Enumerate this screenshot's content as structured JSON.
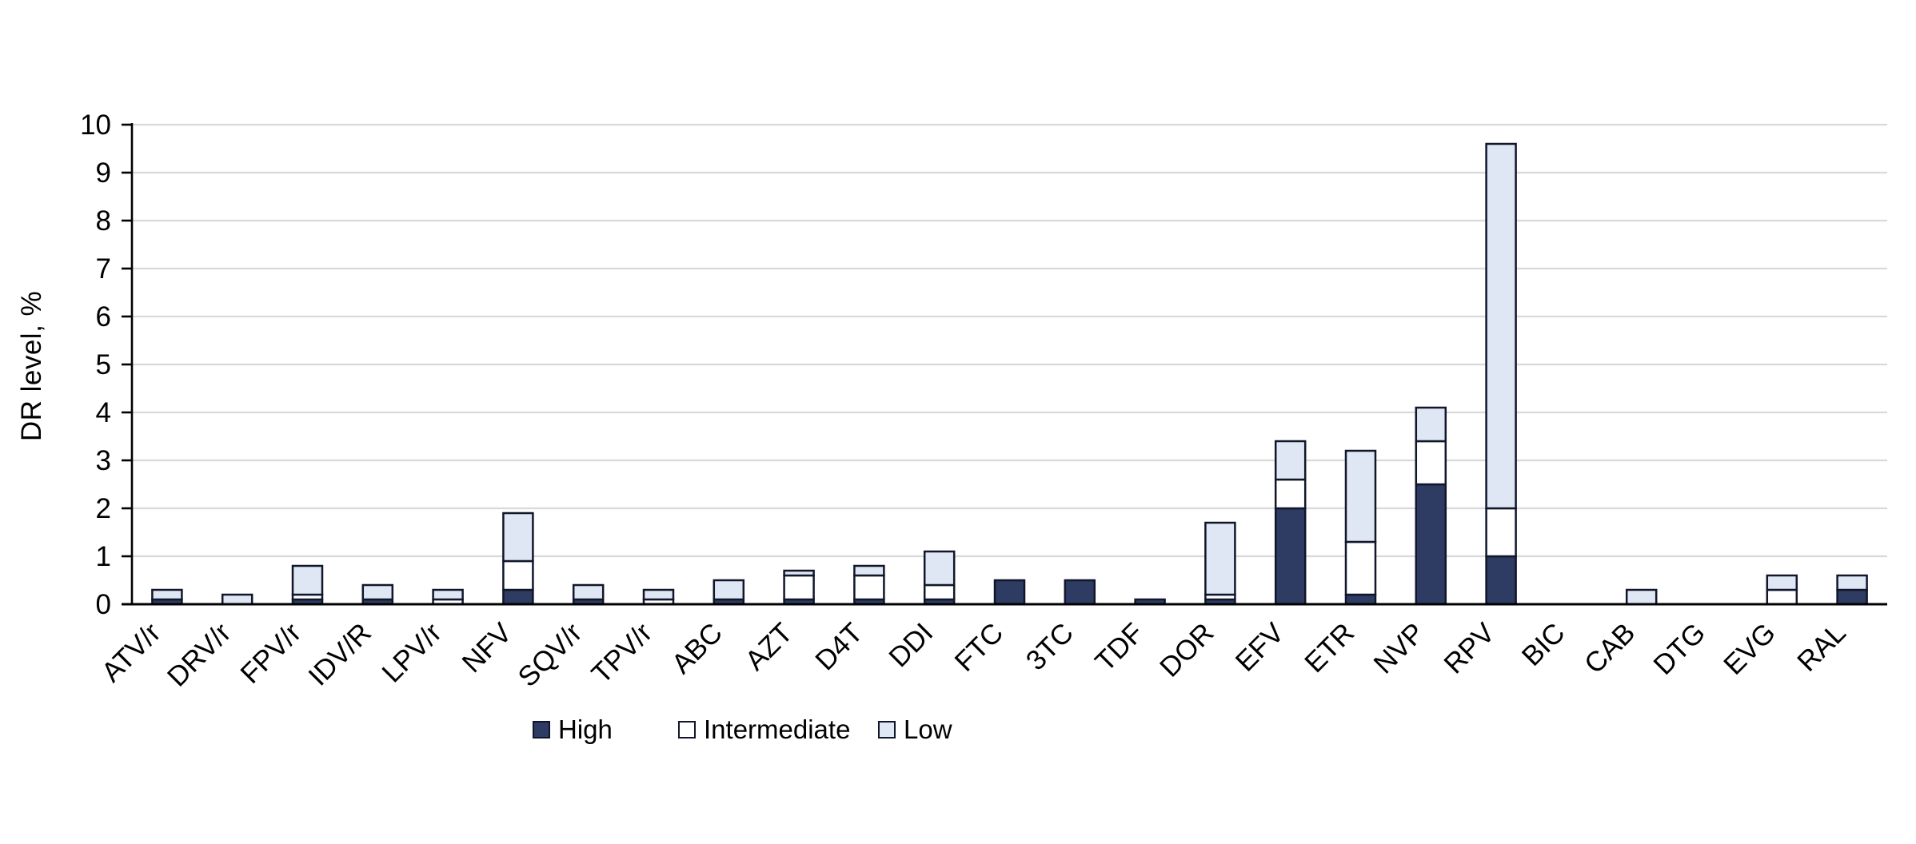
{
  "chart_data": {
    "type": "bar",
    "stacked": true,
    "title": "",
    "xlabel": "",
    "ylabel": "DR level, %",
    "ylim": [
      0,
      10
    ],
    "ytick_step": 1,
    "yticks": [
      0,
      1,
      2,
      3,
      4,
      5,
      6,
      7,
      8,
      9,
      10
    ],
    "grid": "horizontal",
    "legend_position": "bottom",
    "categories": [
      "ATV/r",
      "DRV/r",
      "FPV/r",
      "IDV/R",
      "LPV/r",
      "NFV",
      "SQV/r",
      "TPV/r",
      "ABC",
      "AZT",
      "D4T",
      "DDI",
      "FTC",
      "3TC",
      "TDF",
      "DOR",
      "EFV",
      "ETR",
      "NVP",
      "RPV",
      "BIC",
      "CAB",
      "DTG",
      "EVG",
      "RAL"
    ],
    "series": [
      {
        "name": "High",
        "color": "#2E3C63",
        "values": [
          0.1,
          0,
          0.1,
          0.1,
          0,
          0.3,
          0.1,
          0,
          0.1,
          0.1,
          0.1,
          0.1,
          0.5,
          0.5,
          0.1,
          0.1,
          2.0,
          0.2,
          2.5,
          1.0,
          0,
          0,
          0,
          0,
          0.3
        ]
      },
      {
        "name": "Intermediate",
        "color": "#FFFFFF",
        "values": [
          0,
          0,
          0.1,
          0,
          0.1,
          0.6,
          0,
          0.1,
          0,
          0.5,
          0.5,
          0.3,
          0,
          0,
          0,
          0.1,
          0.6,
          1.1,
          0.9,
          1.0,
          0,
          0,
          0,
          0.3,
          0
        ]
      },
      {
        "name": "Low",
        "color": "#DEE7F3",
        "values": [
          0.2,
          0.2,
          0.6,
          0.3,
          0.2,
          1.0,
          0.3,
          0.2,
          0.4,
          0.1,
          0.2,
          0.7,
          0,
          0,
          0,
          1.5,
          0.8,
          1.9,
          0.7,
          7.6,
          0,
          0.3,
          0,
          0.3,
          0.3
        ]
      }
    ]
  },
  "colors": {
    "background": "#FFFFFF",
    "bar_border": "#11162A",
    "axis_line": "#000000",
    "gridline": "#D9D9D9",
    "text": "#000000"
  }
}
